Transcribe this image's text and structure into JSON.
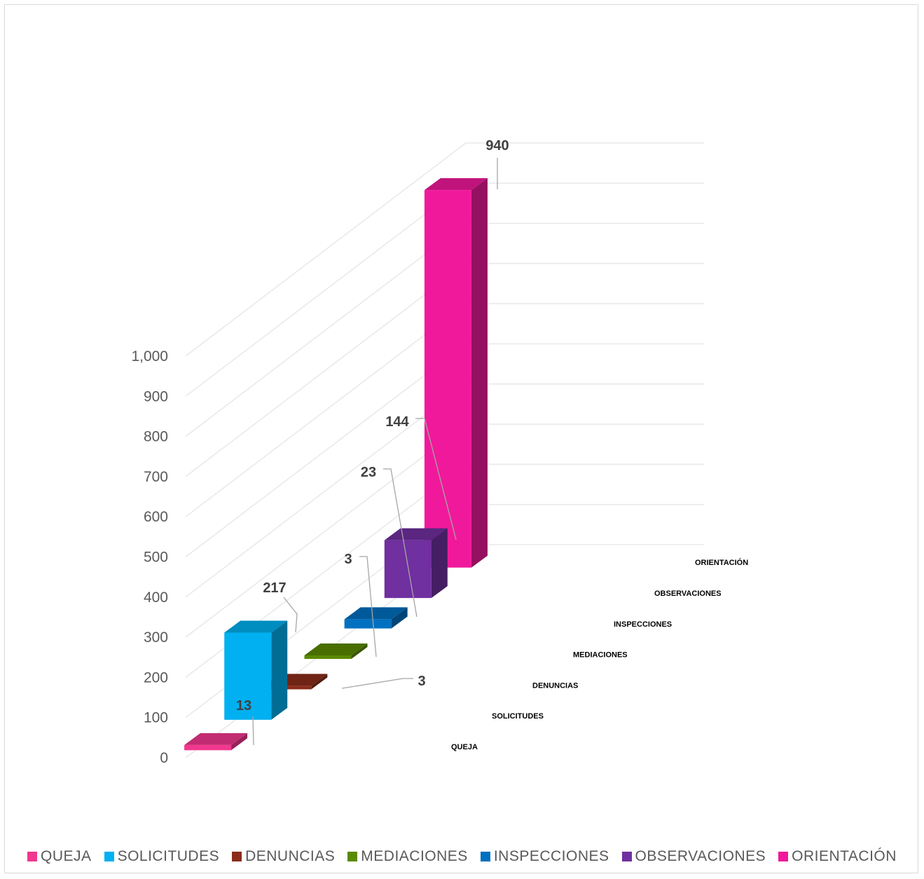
{
  "chart_data": {
    "type": "bar",
    "categories": [
      "QUEJA",
      "SOLICITUDES",
      "DENUNCIAS",
      "MEDIACIONES",
      "INSPECCIONES",
      "OBSERVACIONES",
      "ORIENTACIÓN"
    ],
    "values": [
      13,
      217,
      3,
      3,
      23,
      144,
      940
    ],
    "data_labels": [
      "13",
      "217",
      "3",
      "3",
      "23",
      "144",
      "940"
    ],
    "colors": [
      "#f2378e",
      "#00b0f0",
      "#8b2d1a",
      "#5a8a00",
      "#0070c0",
      "#7030a0",
      "#f0199b"
    ],
    "y_ticks": [
      "0",
      "100",
      "200",
      "300",
      "400",
      "500",
      "600",
      "700",
      "800",
      "900",
      "1,000"
    ],
    "ylim": [
      0,
      1000
    ],
    "grid": true,
    "legend_position": "bottom",
    "title": "",
    "xlabel": "",
    "ylabel": ""
  }
}
